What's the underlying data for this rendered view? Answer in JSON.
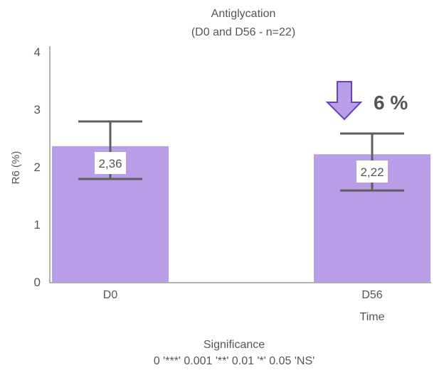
{
  "chart_data": {
    "type": "bar",
    "title": "Antiglycation",
    "subtitle": "(D0 and D56 - n=22)",
    "xlabel": "Time",
    "ylabel": "R6 (%)",
    "ylim": [
      0,
      4
    ],
    "yticks": [
      "0",
      "1",
      "2",
      "3",
      "4"
    ],
    "categories": [
      "D0",
      "D56"
    ],
    "values": [
      2.36,
      2.22
    ],
    "value_labels": [
      "2,36",
      "2,22"
    ],
    "error_bars": [
      {
        "low": 1.79,
        "high": 2.79
      },
      {
        "low": 1.59,
        "high": 2.58
      }
    ],
    "annotation": {
      "text": "6 %",
      "icon": "down-arrow-icon",
      "category": "D56"
    },
    "footer": {
      "title": "Significance",
      "text": "0 '***' 0.001 '**' 0.01 '*' 0.05 'NS'"
    },
    "grid": false,
    "colors": {
      "bar": "#b99ee7",
      "arrow_stroke": "#6b3fbf",
      "error": "#5f5f5f",
      "axis": "#b0b0b0"
    }
  }
}
